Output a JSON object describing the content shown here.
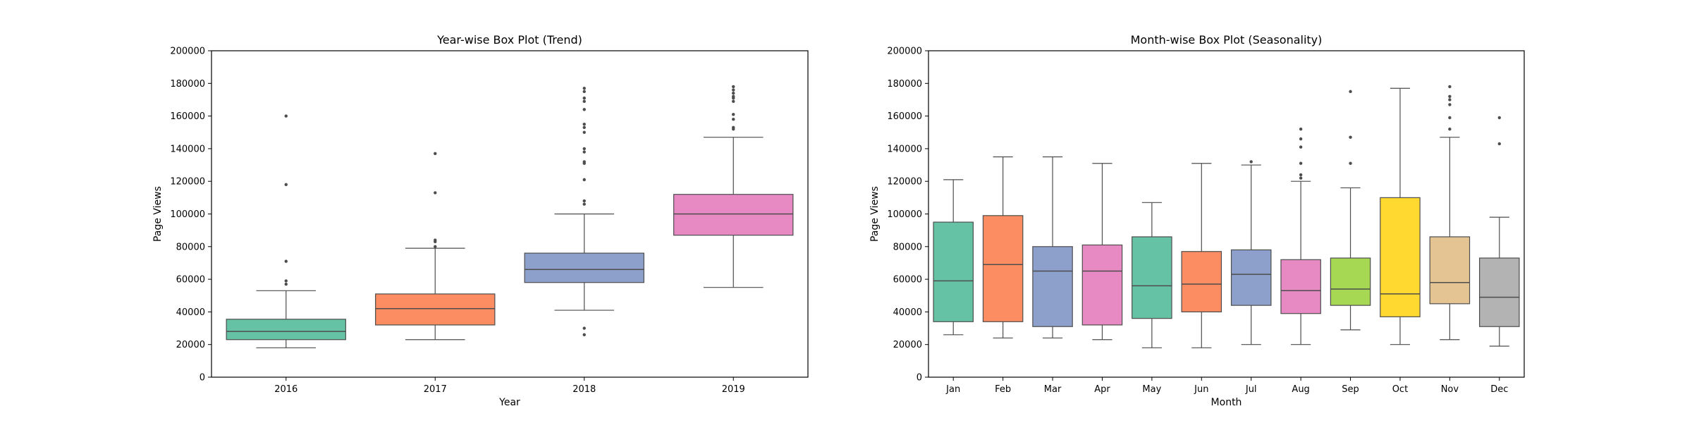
{
  "chart_data": [
    {
      "type": "box",
      "title": "Year-wise Box Plot (Trend)",
      "xlabel": "Year",
      "ylabel": "Page Views",
      "ylim": [
        0,
        200000
      ],
      "yticks": [
        0,
        20000,
        40000,
        60000,
        80000,
        100000,
        120000,
        140000,
        160000,
        180000,
        200000
      ],
      "grid": false,
      "categories": [
        "2016",
        "2017",
        "2018",
        "2019"
      ],
      "colors": [
        "#66c2a5",
        "#fc8d62",
        "#8da0cb",
        "#e78ac3"
      ],
      "boxes": [
        {
          "whisker_low": 18000,
          "q1": 23000,
          "median": 28000,
          "q3": 35500,
          "whisker_high": 53000,
          "fliers": [
            57000,
            59000,
            71000,
            118000,
            160000
          ]
        },
        {
          "whisker_low": 23000,
          "q1": 32000,
          "median": 42000,
          "q3": 51000,
          "whisker_high": 79000,
          "fliers": [
            80000,
            83000,
            84000,
            113000,
            137000
          ]
        },
        {
          "whisker_low": 41000,
          "q1": 58000,
          "median": 66000,
          "q3": 76000,
          "whisker_high": 100000,
          "fliers": [
            26000,
            30000,
            106000,
            108000,
            121000,
            131000,
            132000,
            138000,
            140000,
            150000,
            153000,
            155000,
            164000,
            169000,
            171000,
            175000,
            177000
          ]
        },
        {
          "whisker_low": 55000,
          "q1": 87000,
          "median": 100000,
          "q3": 112000,
          "whisker_high": 147000,
          "fliers": [
            152000,
            153000,
            158000,
            161000,
            169000,
            171000,
            172000,
            174000,
            176000,
            178000
          ]
        }
      ]
    },
    {
      "type": "box",
      "title": "Month-wise Box Plot (Seasonality)",
      "xlabel": "Month",
      "ylabel": "Page Views",
      "ylim": [
        0,
        200000
      ],
      "yticks": [
        0,
        20000,
        40000,
        60000,
        80000,
        100000,
        120000,
        140000,
        160000,
        180000,
        200000
      ],
      "grid": false,
      "categories": [
        "Jan",
        "Feb",
        "Mar",
        "Apr",
        "May",
        "Jun",
        "Jul",
        "Aug",
        "Sep",
        "Oct",
        "Nov",
        "Dec"
      ],
      "colors": [
        "#66c2a5",
        "#fc8d62",
        "#8da0cb",
        "#e78ac3",
        "#66c2a5",
        "#fc8d62",
        "#8da0cb",
        "#e78ac3",
        "#a6d854",
        "#ffd92f",
        "#e5c494",
        "#b3b3b3"
      ],
      "boxes": [
        {
          "whisker_low": 26000,
          "q1": 34000,
          "median": 59000,
          "q3": 95000,
          "whisker_high": 121000,
          "fliers": []
        },
        {
          "whisker_low": 24000,
          "q1": 34000,
          "median": 69000,
          "q3": 99000,
          "whisker_high": 135000,
          "fliers": []
        },
        {
          "whisker_low": 24000,
          "q1": 31000,
          "median": 65000,
          "q3": 80000,
          "whisker_high": 135000,
          "fliers": []
        },
        {
          "whisker_low": 23000,
          "q1": 32000,
          "median": 65000,
          "q3": 81000,
          "whisker_high": 131000,
          "fliers": []
        },
        {
          "whisker_low": 18000,
          "q1": 36000,
          "median": 56000,
          "q3": 86000,
          "whisker_high": 107000,
          "fliers": []
        },
        {
          "whisker_low": 18000,
          "q1": 40000,
          "median": 57000,
          "q3": 77000,
          "whisker_high": 131000,
          "fliers": []
        },
        {
          "whisker_low": 20000,
          "q1": 44000,
          "median": 63000,
          "q3": 78000,
          "whisker_high": 130000,
          "fliers": [
            132000
          ]
        },
        {
          "whisker_low": 20000,
          "q1": 39000,
          "median": 53000,
          "q3": 72000,
          "whisker_high": 120000,
          "fliers": [
            122000,
            124000,
            131000,
            141000,
            146000,
            152000
          ]
        },
        {
          "whisker_low": 29000,
          "q1": 44000,
          "median": 54000,
          "q3": 73000,
          "whisker_high": 116000,
          "fliers": [
            131000,
            147000,
            175000
          ]
        },
        {
          "whisker_low": 20000,
          "q1": 37000,
          "median": 51000,
          "q3": 110000,
          "whisker_high": 177000,
          "fliers": []
        },
        {
          "whisker_low": 23000,
          "q1": 45000,
          "median": 58000,
          "q3": 86000,
          "whisker_high": 147000,
          "fliers": [
            152000,
            159000,
            167000,
            170000,
            172000,
            178000
          ]
        },
        {
          "whisker_low": 19000,
          "q1": 31000,
          "median": 49000,
          "q3": 73000,
          "whisker_high": 98000,
          "fliers": [
            143000,
            159000
          ]
        }
      ]
    }
  ]
}
